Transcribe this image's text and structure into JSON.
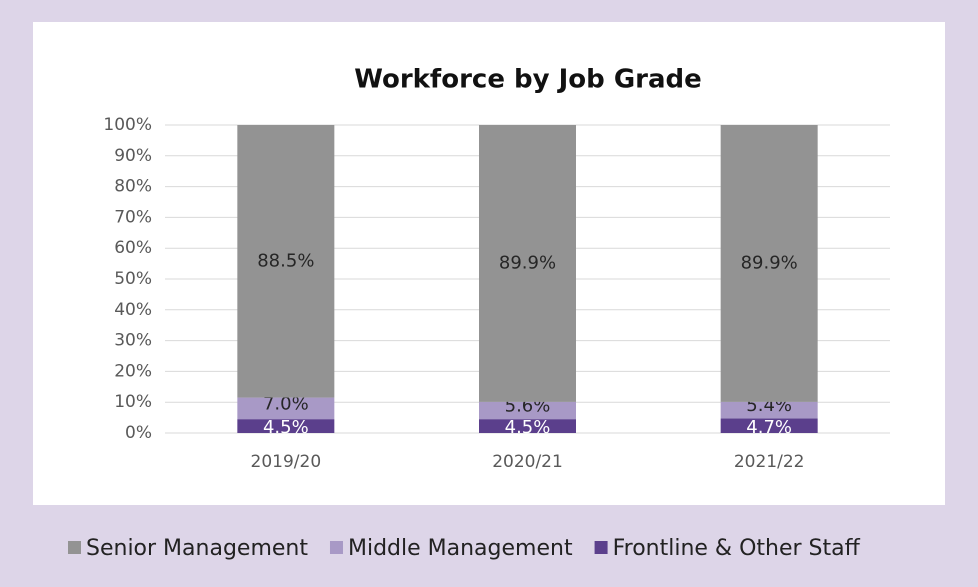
{
  "chart_data": {
    "type": "stacked_bar",
    "title": "Workforce by Job Grade",
    "categories": [
      "2019/20",
      "2020/21",
      "2021/22"
    ],
    "series": [
      {
        "name": "Senior Management",
        "color": "#939393",
        "values": [
          88.5,
          89.9,
          89.9
        ],
        "value_labels": [
          "88.5%",
          "89.9%",
          "89.9%"
        ]
      },
      {
        "name": "Middle Management",
        "color": "#a899c6",
        "values": [
          7.0,
          5.6,
          5.4
        ],
        "value_labels": [
          "7.0%",
          "5.6%",
          "5.4%"
        ]
      },
      {
        "name": "Frontline & Other Staff",
        "color": "#5b3f8c",
        "values": [
          4.5,
          4.5,
          4.7
        ],
        "value_labels": [
          "4.5%",
          "4.5%",
          "4.7%"
        ]
      }
    ],
    "ylim": [
      0,
      100
    ],
    "yticks": [
      {
        "value": 0,
        "label": "0%"
      },
      {
        "value": 10,
        "label": "10%"
      },
      {
        "value": 20,
        "label": "20%"
      },
      {
        "value": 30,
        "label": "30%"
      },
      {
        "value": 40,
        "label": "40%"
      },
      {
        "value": 50,
        "label": "50%"
      },
      {
        "value": 60,
        "label": "60%"
      },
      {
        "value": 70,
        "label": "70%"
      },
      {
        "value": 80,
        "label": "80%"
      },
      {
        "value": 90,
        "label": "90%"
      },
      {
        "value": 100,
        "label": "100%"
      }
    ],
    "grid": true,
    "legend": "bottom"
  }
}
